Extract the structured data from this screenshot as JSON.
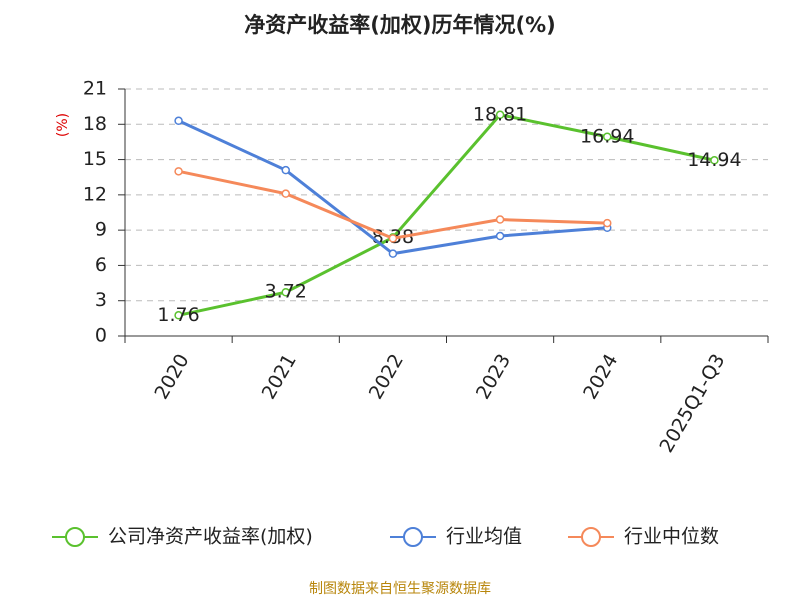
{
  "chart_data": {
    "type": "line",
    "title": "净资产收益率(加权)历年情况(%)",
    "y_label": "(%)",
    "source": "制图数据来自恒生聚源数据库",
    "categories": [
      "2020",
      "2021",
      "2022",
      "2023",
      "2024",
      "2025Q1-Q3"
    ],
    "series": [
      {
        "name": "公司净资产收益率(加权)",
        "color": "#5ac12e",
        "values": [
          1.76,
          3.72,
          8.38,
          18.81,
          16.94,
          14.94
        ],
        "show_labels": true
      },
      {
        "name": "行业均值",
        "color": "#4e80d8",
        "values": [
          18.3,
          14.1,
          7.0,
          8.5,
          9.2,
          null
        ]
      },
      {
        "name": "行业中位数",
        "color": "#f5895a",
        "values": [
          14.0,
          12.1,
          8.3,
          9.9,
          9.6,
          null
        ]
      }
    ],
    "ylim": [
      0,
      21
    ],
    "yticks": [
      0,
      3,
      6,
      9,
      12,
      15,
      18,
      21
    ],
    "grid": true,
    "legend": "bottom"
  }
}
